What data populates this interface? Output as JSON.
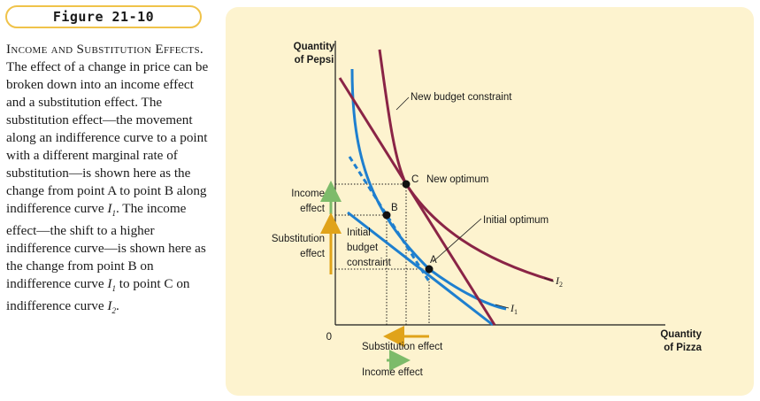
{
  "figure": {
    "label": "Figure 21-10"
  },
  "caption": {
    "heading": "Income and Substitution Effects.",
    "body_1": "The effect of a change in price can be broken down into an income effect and a substitution effect. The substitution effect—the movement along an indifference curve to a point with a different marginal rate of substitution—is shown here as the change from point A to point B along indifference curve ",
    "i1_letter": "I",
    "i1_sub": "1",
    "body_2": ". The income effect—the shift to a higher indifference curve—is shown here as the change from point B on indifference curve ",
    "i1b_letter": "I",
    "i1b_sub": "1",
    "body_3": " to point C on indifference curve ",
    "i2_letter": "I",
    "i2_sub": "2",
    "body_4": "."
  },
  "diagram": {
    "y_axis_label_line1": "Quantity",
    "y_axis_label_line2": "of Pepsi",
    "x_axis_label_line1": "Quantity",
    "x_axis_label_line2": "of Pizza",
    "origin": "0",
    "new_budget_label": "New budget constraint",
    "point_c_label": "C",
    "new_optimum_label": "New optimum",
    "point_b_label": "B",
    "point_a_label": "A",
    "initial_optimum_label": "Initial optimum",
    "initial_budget_line1": "Initial",
    "initial_budget_line2": "budget",
    "initial_budget_line3": "constraint",
    "income_effect_y_line1": "Income",
    "income_effect_y_line2": "effect",
    "substitution_effect_y_line1": "Substitution",
    "substitution_effect_y_line2": "effect",
    "substitution_effect_x": "Substitution effect",
    "income_effect_x": "Income effect",
    "curve_i1_letter": "I",
    "curve_i1_sub": "1",
    "curve_i2_letter": "I",
    "curve_i2_sub": "2",
    "colors": {
      "panel": "#fdf3cf",
      "blue": "#1e7fcf",
      "maroon": "#8a2446",
      "income_arrow": "#7dbb6a",
      "substitution_arrow": "#e0a31a",
      "figure_border": "#f0c34a"
    }
  }
}
